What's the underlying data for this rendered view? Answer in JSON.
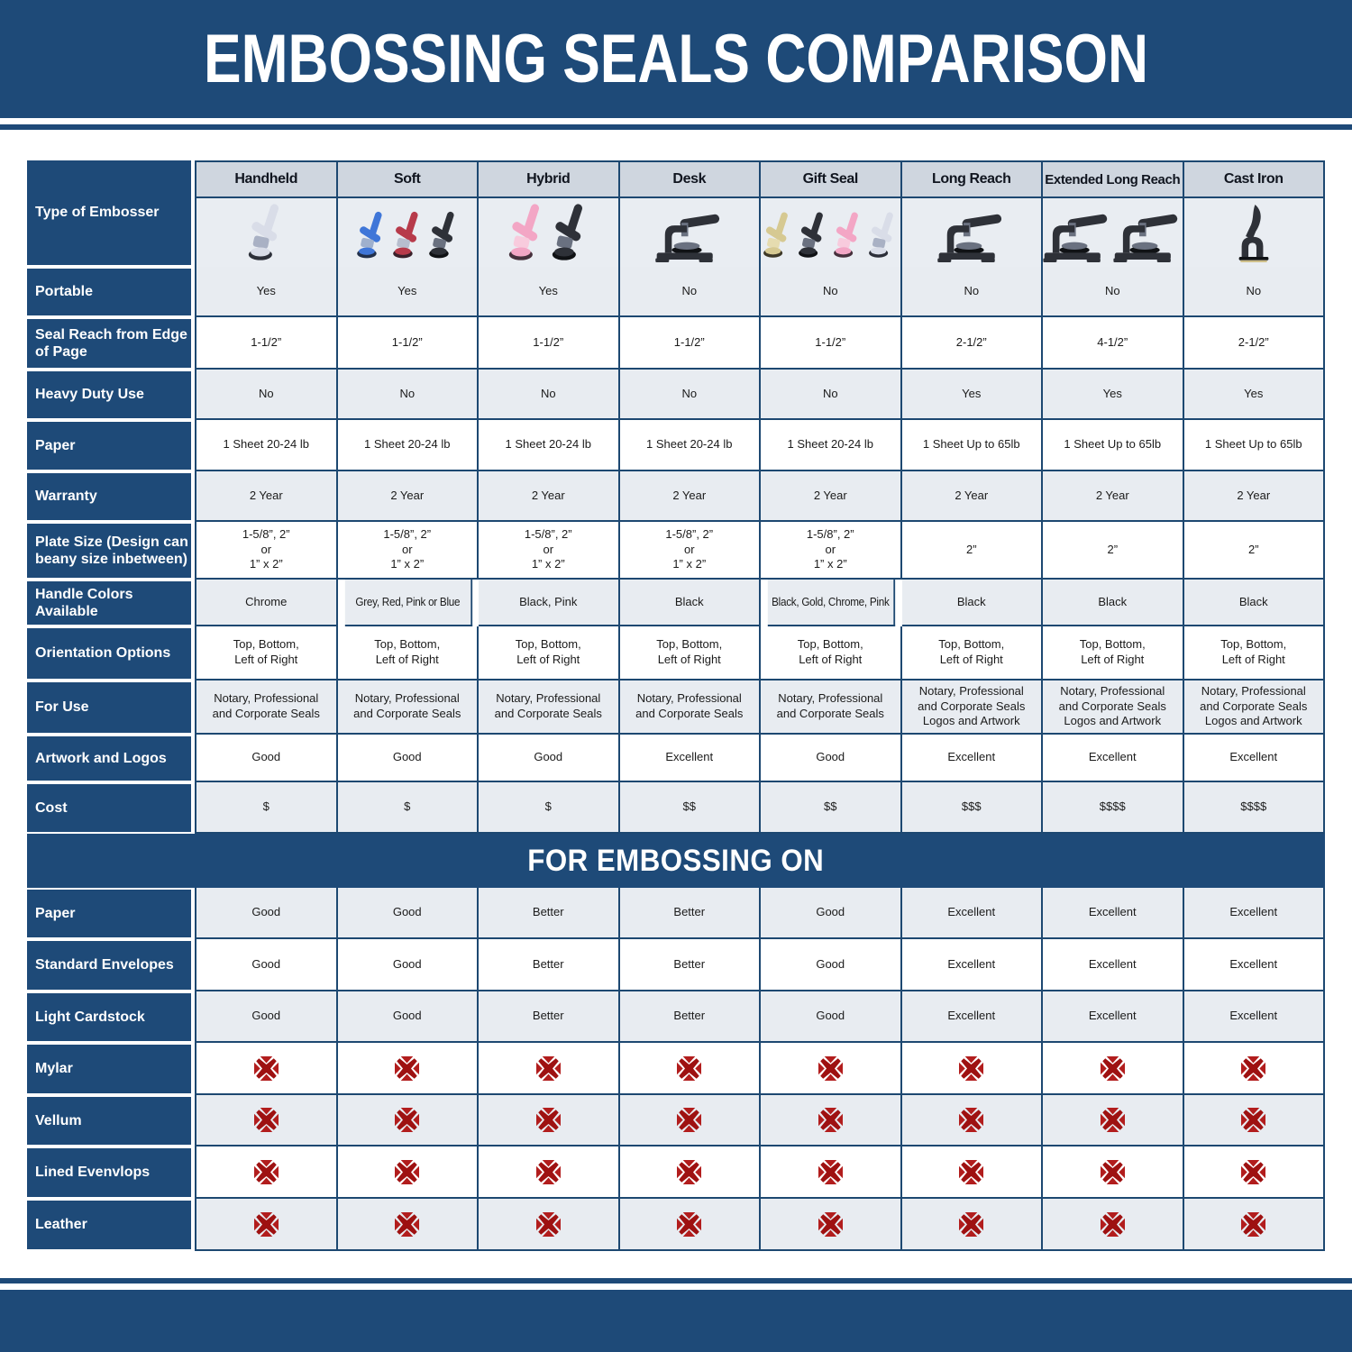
{
  "title": "EMBOSSING SEALS COMPARISON",
  "section_title": "FOR EMBOSSING ON",
  "type_label": "Type of Embosser",
  "colors": {
    "navy": "#1e4a78",
    "grid_border": "#1d4871",
    "header_band": "#cfd6df",
    "row_light": "#e8ecf1",
    "row_white": "#ffffff",
    "red_x": "#a31313"
  },
  "columns": [
    "Handheld",
    "Soft",
    "Hybrid",
    "Desk",
    "Gift Seal",
    "Long Reach",
    "Extended Long Reach",
    "Cast Iron"
  ],
  "embossers": [
    {
      "column": "Handheld",
      "icon": "handheld-embosser-icon",
      "colors": [
        "chrome"
      ]
    },
    {
      "column": "Soft",
      "icon": "handheld-embosser-icon",
      "colors": [
        "blue",
        "red",
        "black"
      ]
    },
    {
      "column": "Hybrid",
      "icon": "handheld-embosser-icon",
      "colors": [
        "pink",
        "black"
      ]
    },
    {
      "column": "Desk",
      "icon": "desk-embosser-icon",
      "colors": [
        "black"
      ]
    },
    {
      "column": "Gift Seal",
      "icon": "handheld-embosser-icon",
      "colors": [
        "gold",
        "black",
        "pink",
        "chrome"
      ]
    },
    {
      "column": "Long Reach",
      "icon": "long-reach-embosser-icon",
      "colors": [
        "black"
      ]
    },
    {
      "column": "Extended Long Reach",
      "icon": "long-reach-embosser-icon",
      "colors": [
        "black",
        "black"
      ]
    },
    {
      "column": "Cast Iron",
      "icon": "cast-iron-embosser-icon",
      "colors": [
        "black"
      ]
    }
  ],
  "spec_rows": [
    {
      "label": "Portable",
      "values": [
        "Yes",
        "Yes",
        "Yes",
        "No",
        "No",
        "No",
        "No",
        "No"
      ]
    },
    {
      "label": "Seal Reach from Edge of Page",
      "values": [
        "1-1/2”",
        "1-1/2”",
        "1-1/2”",
        "1-1/2”",
        "1-1/2”",
        "2-1/2”",
        "4-1/2”",
        "2-1/2”"
      ]
    },
    {
      "label": "Heavy Duty Use",
      "values": [
        "No",
        "No",
        "No",
        "No",
        "No",
        "Yes",
        "Yes",
        "Yes"
      ]
    },
    {
      "label": "Paper",
      "values": [
        "1 Sheet 20-24 lb",
        "1 Sheet 20-24 lb",
        "1 Sheet 20-24 lb",
        "1 Sheet 20-24 lb",
        "1 Sheet 20-24 lb",
        "1 Sheet Up to 65lb",
        "1 Sheet Up to 65lb",
        "1 Sheet Up to 65lb"
      ]
    },
    {
      "label": "Warranty",
      "values": [
        "2 Year",
        "2 Year",
        "2 Year",
        "2 Year",
        "2 Year",
        "2 Year",
        "2 Year",
        "2 Year"
      ]
    },
    {
      "label": "Plate Size (Design can beany size inbetween)",
      "values": [
        "1-5/8”, 2”\nor\n1” x 2”",
        "1-5/8”, 2”\nor\n1” x 2”",
        "1-5/8”, 2”\nor\n1” x 2”",
        "1-5/8”, 2”\nor\n1” x 2”",
        "1-5/8”, 2”\nor\n1” x 2”",
        "2”",
        "2”",
        "2”"
      ]
    },
    {
      "label": "Handle Colors Available",
      "values": [
        "Chrome",
        "Grey, Red, Pink or Blue",
        "Black, Pink",
        "Black",
        "Black, Gold, Chrome, Pink",
        "Black",
        "Black",
        "Black"
      ]
    },
    {
      "label": "Orientation Options",
      "values": [
        "Top, Bottom,\nLeft of Right",
        "Top, Bottom,\nLeft of Right",
        "Top, Bottom,\nLeft of Right",
        "Top, Bottom,\nLeft of Right",
        "Top, Bottom,\nLeft of Right",
        "Top, Bottom,\nLeft of Right",
        "Top, Bottom,\nLeft of Right",
        "Top, Bottom,\nLeft of Right"
      ]
    },
    {
      "label": "For Use",
      "values": [
        "Notary, Professional\nand Corporate Seals",
        "Notary, Professional\nand Corporate Seals",
        "Notary, Professional\nand Corporate Seals",
        "Notary, Professional\nand Corporate Seals",
        "Notary, Professional\nand Corporate Seals",
        "Notary, Professional\nand Corporate Seals\nLogos and Artwork",
        "Notary, Professional\nand Corporate Seals\nLogos and Artwork",
        "Notary, Professional\nand Corporate Seals\nLogos and Artwork"
      ]
    },
    {
      "label": "Artwork and Logos",
      "values": [
        "Good",
        "Good",
        "Good",
        "Excellent",
        "Good",
        "Excellent",
        "Excellent",
        "Excellent"
      ]
    },
    {
      "label": "Cost",
      "values": [
        "$",
        "$",
        "$",
        "$$",
        "$$",
        "$$$",
        "$$$$",
        "$$$$"
      ]
    }
  ],
  "embossing_rows": [
    {
      "label": "Paper",
      "values": [
        "Good",
        "Good",
        "Better",
        "Better",
        "Good",
        "Excellent",
        "Excellent",
        "Excellent"
      ]
    },
    {
      "label": "Standard Envelopes",
      "values": [
        "Good",
        "Good",
        "Better",
        "Better",
        "Good",
        "Excellent",
        "Excellent",
        "Excellent"
      ]
    },
    {
      "label": "Light Cardstock",
      "values": [
        "Good",
        "Good",
        "Better",
        "Better",
        "Good",
        "Excellent",
        "Excellent",
        "Excellent"
      ]
    },
    {
      "label": "Mylar",
      "icon": "red-x-icon"
    },
    {
      "label": "Vellum",
      "icon": "red-x-icon"
    },
    {
      "label": "Lined Evenvlops",
      "icon": "red-x-icon"
    },
    {
      "label": "Leather",
      "icon": "red-x-icon"
    }
  ]
}
